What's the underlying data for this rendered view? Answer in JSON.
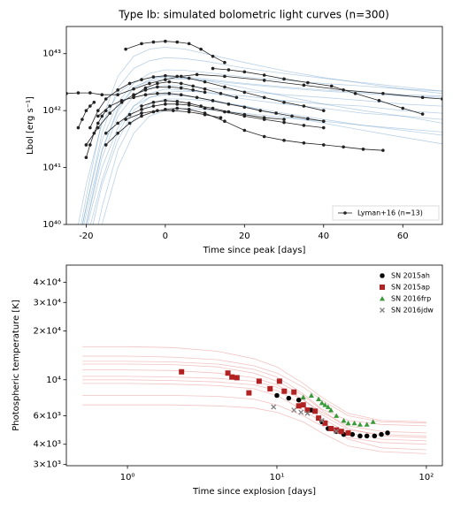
{
  "chart_data": [
    {
      "type": "line",
      "title": "Type Ib: simulated bolometric light curves (n=300)",
      "x_label": "Time since peak [days]",
      "y_label": "Lbol [erg s⁻¹]",
      "xlim": [
        -25,
        70
      ],
      "ylim": [
        1e+40,
        3e+43
      ],
      "y_log": true,
      "x_log": false,
      "xticks": [
        -20,
        0,
        20,
        40,
        60
      ],
      "yticks": [
        {
          "value": 1e+40,
          "label": "10⁴⁰"
        },
        {
          "value": 1e+41,
          "label": "10⁴¹"
        },
        {
          "value": 1e+42,
          "label": "10⁴²"
        },
        {
          "value": 1e+43,
          "label": "10⁴³"
        }
      ],
      "legend": "lower right",
      "simulated": {
        "color": "#3b7fb8",
        "x": [
          -24,
          -20,
          -16,
          -12,
          -8,
          -4,
          0,
          5,
          10,
          20,
          30,
          40,
          50,
          60,
          70
        ],
        "curves": [
          [
            1e+39,
            1e+40,
            2e+41,
            1e+42,
            2.5e+42,
            3.5e+42,
            4e+42,
            3.9e+42,
            3.6e+42,
            3e+42,
            2.6e+42,
            2.3e+42,
            2.1e+42,
            1.9e+42,
            1.8e+42
          ],
          [
            1e+39,
            5e+39,
            6e+40,
            4e+41,
            1.2e+42,
            2e+42,
            2.4e+42,
            2.3e+42,
            2.1e+42,
            1.6e+42,
            1.3e+42,
            1.1e+42,
            9e+41,
            8e+41,
            7e+41
          ],
          [
            1e+39,
            2e+40,
            4e+41,
            2.5e+42,
            5.5e+42,
            7.5e+42,
            8.5e+42,
            8.2e+42,
            7.4e+42,
            5.6e+42,
            4.5e+42,
            3.7e+42,
            3.1e+42,
            2.6e+42,
            2.2e+42
          ],
          [
            1e+39,
            1e+39,
            2e+40,
            2e+41,
            7e+41,
            1.3e+42,
            1.6e+42,
            1.6e+42,
            1.5e+42,
            1.2e+42,
            9e+41,
            7e+41,
            5.5e+41,
            4.5e+41,
            3.7e+41
          ],
          [
            2e+39,
            5e+40,
            6e+41,
            2e+42,
            3.2e+42,
            3.8e+42,
            3.9e+42,
            3.7e+42,
            3.4e+42,
            2.9e+42,
            2.5e+42,
            2.2e+42,
            2e+42,
            1.8e+42,
            1.7e+42
          ],
          [
            1e+39,
            1e+40,
            1.5e+41,
            8e+41,
            1.8e+42,
            2.5e+42,
            2.8e+42,
            2.7e+42,
            2.5e+42,
            2.2e+42,
            1.9e+42,
            1.7e+42,
            1.5e+42,
            1.3e+42,
            1.2e+42
          ],
          [
            1e+39,
            3e+39,
            5e+40,
            3e+41,
            1e+42,
            1.7e+42,
            2.1e+42,
            2.2e+42,
            2.1e+42,
            1.8e+42,
            1.5e+42,
            1.3e+42,
            1.2e+42,
            1e+42,
            9e+41
          ],
          [
            1e+39,
            3e+40,
            7e+41,
            4e+42,
            9e+42,
            1.2e+43,
            1.3e+43,
            1.2e+43,
            1e+43,
            7e+42,
            5e+42,
            3.8e+42,
            3e+42,
            2.4e+42,
            2e+42
          ],
          [
            1e+39,
            8e+39,
            1e+41,
            5e+41,
            1.2e+42,
            1.7e+42,
            1.9e+42,
            1.8e+42,
            1.6e+42,
            1.2e+42,
            8e+41,
            6e+41,
            4.5e+41,
            3.4e+41,
            2.6e+41
          ],
          [
            1e+39,
            2e+40,
            3e+41,
            1.4e+42,
            3e+42,
            4.5e+42,
            5.2e+42,
            5.1e+42,
            4.7e+42,
            3.9e+42,
            3.4e+42,
            3e+42,
            2.7e+42,
            2.4e+42,
            2.2e+42
          ],
          [
            1e+39,
            1e+39,
            1e+40,
            1e+41,
            4e+41,
            8e+41,
            1e+42,
            1.1e+42,
            1.05e+42,
            9e+41,
            7.5e+41,
            6.5e+41,
            5.5e+41,
            4.8e+41,
            4.2e+41
          ],
          [
            1e+39,
            1.5e+40,
            2e+41,
            1.1e+42,
            2.6e+42,
            3.3e+42,
            3.6e+42,
            3.6e+42,
            3.4e+42,
            2.5e+42,
            1.8e+42,
            1.3e+42,
            1e+42,
            8e+41,
            6e+41
          ]
        ]
      },
      "observed": {
        "name": "Lyman+16 (n=13)",
        "color": "#222222",
        "curves": [
          {
            "x": [
              -10,
              -6,
              -3,
              0,
              3,
              6,
              9,
              12,
              15
            ],
            "values": [
              1.2e+43,
              1.5e+43,
              1.6e+43,
              1.65e+43,
              1.6e+43,
              1.5e+43,
              1.2e+43,
              9e+42,
              7e+42
            ]
          },
          {
            "x": [
              12,
              16,
              20,
              25,
              30,
              36,
              42,
              48,
              54,
              60,
              65
            ],
            "values": [
              5.5e+42,
              5.2e+42,
              4.8e+42,
              4.2e+42,
              3.6e+42,
              3.1e+42,
              2.7e+42,
              2e+42,
              1.5e+42,
              1.1e+42,
              8.7e+41
            ]
          },
          {
            "x": [
              -25,
              -22,
              -19,
              -16,
              -12,
              -8,
              -4,
              0,
              4,
              8,
              15,
              25,
              35,
              45,
              55,
              65,
              70
            ],
            "values": [
              2e+42,
              2.05e+42,
              2.05e+42,
              1.9e+42,
              1.9e+42,
              2.4e+42,
              3e+42,
              3.5e+42,
              4e+42,
              4.3e+42,
              4e+42,
              3.4e+42,
              2.8e+42,
              2.3e+42,
              2e+42,
              1.7e+42,
              1.6e+42
            ]
          },
          {
            "x": [
              -19,
              -17,
              -15,
              -12,
              -9,
              -6,
              -3,
              0,
              3,
              6,
              10,
              15,
              20,
              25,
              30,
              35,
              40
            ],
            "values": [
              5e+41,
              1e+42,
              1.6e+42,
              2.3e+42,
              3e+42,
              3.5e+42,
              3.9e+42,
              4.1e+42,
              4e+42,
              3.7e+42,
              3.2e+42,
              2.6e+42,
              2.1e+42,
              1.7e+42,
              1.4e+42,
              1.2e+42,
              1e+42
            ]
          },
          {
            "x": [
              -20,
              -17,
              -14,
              -11,
              -8,
              -5,
              -2,
              1,
              4,
              7,
              10
            ],
            "values": [
              2.5e+41,
              5e+41,
              9e+41,
              1.4e+42,
              1.9e+42,
              2.3e+42,
              2.6e+42,
              2.6e+42,
              2.5e+42,
              2.3e+42,
              2.1e+42
            ]
          },
          {
            "x": [
              -17,
              -14,
              -11,
              -8,
              -5,
              -2,
              1,
              4,
              8,
              12,
              16,
              20,
              24,
              28,
              32,
              36,
              40
            ],
            "values": [
              8e+41,
              1.2e+42,
              1.5e+42,
              1.7e+42,
              1.9e+42,
              2e+42,
              2e+42,
              1.9e+42,
              1.7e+42,
              1.5e+42,
              1.3e+42,
              1.15e+42,
              1e+42,
              9e+41,
              8e+41,
              7.2e+41,
              6.5e+41
            ]
          },
          {
            "x": [
              -15,
              -12,
              -9,
              -6,
              -3,
              0,
              3,
              6,
              10,
              15,
              20,
              25,
              30,
              35,
              40
            ],
            "values": [
              4e+41,
              6e+41,
              8.5e+41,
              1.05e+42,
              1.2e+42,
              1.3e+42,
              1.3e+42,
              1.25e+42,
              1.1e+42,
              9.5e+41,
              8e+41,
              7e+41,
              6.2e+41,
              5.5e+41,
              5e+41
            ]
          },
          {
            "x": [
              -15,
              -12,
              -9,
              -6,
              -3,
              0,
              3,
              6,
              10,
              15,
              20,
              25,
              30,
              35,
              40,
              45,
              50,
              55
            ],
            "values": [
              2.5e+41,
              4e+41,
              6e+41,
              8e+41,
              9.5e+41,
              1.05e+42,
              1.1e+42,
              1.05e+42,
              9e+41,
              6.5e+41,
              4.5e+41,
              3.5e+41,
              3e+41,
              2.7e+41,
              2.5e+41,
              2.3e+41,
              2.1e+41,
              2e+41
            ]
          },
          {
            "x": [
              -20,
              -19,
              -18,
              -17,
              -16,
              -15
            ],
            "values": [
              1.5e+41,
              2.5e+41,
              4e+41,
              6e+41,
              8e+41,
              1e+42
            ]
          },
          {
            "x": [
              -22,
              -21,
              -20,
              -19,
              -18
            ],
            "values": [
              5e+41,
              7e+41,
              1e+42,
              1.2e+42,
              1.4e+42
            ]
          },
          {
            "x": [
              -8,
              -5,
              -2,
              1,
              4,
              7,
              10,
              14,
              18
            ],
            "values": [
              1.8e+42,
              2.5e+42,
              3e+42,
              3.2e+42,
              3e+42,
              2.7e+42,
              2.4e+42,
              2e+42,
              1.7e+42
            ]
          },
          {
            "x": [
              -6,
              -3,
              0,
              3,
              6,
              9,
              12,
              16,
              20,
              25,
              30
            ],
            "values": [
              1.2e+42,
              1.4e+42,
              1.5e+42,
              1.45e+42,
              1.35e+42,
              1.2e+42,
              1.1e+42,
              9.5e+41,
              8.5e+41,
              7.5e+41,
              7e+41
            ]
          },
          {
            "x": [
              -10,
              -6,
              -2,
              2,
              6,
              10,
              14
            ],
            "values": [
              7e+41,
              9e+41,
              1e+42,
              1e+42,
              9.5e+41,
              8.5e+41,
              7.5e+41
            ]
          }
        ]
      }
    },
    {
      "type": "scatter",
      "x_label": "Time since explosion [days]",
      "y_label": "Photospheric temperature [K]",
      "xlim": [
        0.39,
        128
      ],
      "ylim": [
        2950,
        51000
      ],
      "x_log": true,
      "y_log": true,
      "xticks": [
        {
          "value": 1,
          "label": "10⁰"
        },
        {
          "value": 10,
          "label": "10¹"
        },
        {
          "value": 100,
          "label": "10²"
        }
      ],
      "yticks": [
        {
          "value": 3000,
          "label": "3×10³"
        },
        {
          "value": 4000,
          "label": "4×10³"
        },
        {
          "value": 6000,
          "label": "6×10³"
        },
        {
          "value": 10000,
          "label": "10⁴"
        },
        {
          "value": 20000,
          "label": "2×10⁴"
        },
        {
          "value": 30000,
          "label": "3×10⁴"
        },
        {
          "value": 40000,
          "label": "4×10⁴"
        }
      ],
      "legend": "upper right",
      "simulated": {
        "color": "#d9534f",
        "x": [
          0.5,
          1,
          2,
          4,
          7,
          10,
          15,
          20,
          30,
          50,
          100
        ],
        "curves": [
          [
            10500,
            10500,
            10400,
            10200,
            9800,
            9000,
            7500,
            6300,
            5200,
            4800,
            4700
          ],
          [
            16000,
            16000,
            15800,
            15000,
            13500,
            12000,
            9500,
            7800,
            6200,
            5600,
            5500
          ],
          [
            8000,
            8000,
            8000,
            7900,
            7600,
            7000,
            6000,
            5200,
            4400,
            4100,
            4000
          ],
          [
            12500,
            12500,
            12400,
            12000,
            11000,
            9800,
            8000,
            6500,
            5000,
            4500,
            4400
          ],
          [
            9500,
            9500,
            9400,
            9200,
            8800,
            8000,
            6500,
            5500,
            4300,
            3800,
            3700
          ],
          [
            14000,
            14000,
            13800,
            13300,
            12200,
            11000,
            9000,
            7500,
            6000,
            5500,
            5400
          ],
          [
            7000,
            7000,
            7000,
            6900,
            6700,
            6300,
            5500,
            4700,
            3900,
            3600,
            3500
          ],
          [
            11500,
            11500,
            11400,
            11000,
            10300,
            9300,
            7600,
            6100,
            4900,
            4600,
            4500
          ],
          [
            10000,
            10000,
            9900,
            9700,
            9300,
            8600,
            7000,
            5800,
            4700,
            4300,
            4200
          ],
          [
            13000,
            13000,
            12900,
            12500,
            11600,
            10400,
            8200,
            6600,
            5600,
            5300,
            5200
          ]
        ]
      },
      "series": [
        {
          "name": "SN 2015ah",
          "color": "#000000",
          "marker": "circle",
          "x": [
            10,
            12,
            14,
            17,
            20,
            22,
            25,
            28,
            32,
            36,
            40,
            45,
            50,
            55
          ],
          "values": [
            8000,
            7700,
            7500,
            6500,
            5500,
            5000,
            4800,
            4600,
            4600,
            4500,
            4500,
            4500,
            4600,
            4700
          ]
        },
        {
          "name": "SN 2015ap",
          "color": "#b22222",
          "marker": "square",
          "x": [
            2.3,
            4.7,
            5,
            5.4,
            6.5,
            7.6,
            9,
            10.4,
            11.2,
            13,
            14,
            15,
            16,
            18,
            19,
            21,
            23,
            25,
            27,
            30
          ],
          "values": [
            11200,
            11000,
            10400,
            10300,
            8300,
            9800,
            8800,
            9800,
            8500,
            8400,
            6900,
            7000,
            6500,
            6400,
            5800,
            5400,
            5000,
            4900,
            4800,
            4700
          ]
        },
        {
          "name": "SN 2016frp",
          "color": "#3a9a3a",
          "marker": "triangle",
          "x": [
            15,
            17,
            19,
            20,
            21,
            22,
            23,
            25,
            28,
            30,
            33,
            36,
            40,
            44
          ],
          "values": [
            7800,
            8000,
            7600,
            7200,
            7000,
            6800,
            6500,
            6000,
            5600,
            5400,
            5400,
            5300,
            5300,
            5500
          ]
        },
        {
          "name": "SN 2016jdw",
          "color": "#808080",
          "marker": "x",
          "x": [
            9.5,
            13,
            14.5,
            16,
            20,
            25
          ],
          "values": [
            6800,
            6500,
            6300,
            6200,
            5600,
            4800
          ]
        }
      ]
    }
  ]
}
